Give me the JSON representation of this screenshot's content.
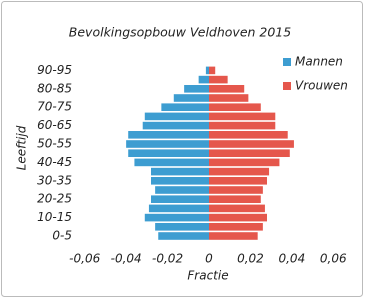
{
  "chart_data": {
    "type": "pyramid",
    "title": "Bevolkingsopbouw Veldhoven 2015",
    "xlabel": "Fractie",
    "ylabel": "Leeftijd",
    "categories": [
      "0-5",
      null,
      "10-15",
      null,
      "20-25",
      null,
      "30-35",
      null,
      "40-45",
      null,
      "50-55",
      null,
      "60-65",
      null,
      "70-75",
      null,
      "80-85",
      null,
      "90-95"
    ],
    "series": [
      {
        "name": "Mannen",
        "color": "#3d9dd1",
        "values": [
          -0.0245,
          -0.026,
          -0.031,
          -0.029,
          -0.028,
          -0.026,
          -0.028,
          -0.028,
          -0.036,
          -0.039,
          -0.04,
          -0.039,
          -0.032,
          -0.031,
          -0.023,
          -0.017,
          -0.012,
          -0.005,
          -0.0015
        ]
      },
      {
        "name": "Vrouwen",
        "color": "#e5574c",
        "values": [
          0.0235,
          0.026,
          0.028,
          0.027,
          0.025,
          0.026,
          0.028,
          0.029,
          0.034,
          0.039,
          0.041,
          0.038,
          0.032,
          0.032,
          0.025,
          0.019,
          0.017,
          0.009,
          0.003
        ]
      }
    ],
    "xlim": [
      -0.07,
      0.07
    ],
    "xticks": [
      {
        "value": -0.06,
        "label": "-0,06"
      },
      {
        "value": -0.04,
        "label": "-0,04"
      },
      {
        "value": -0.02,
        "label": "-0,02"
      },
      0,
      {
        "value": 0.02,
        "label": "0,02"
      },
      {
        "value": 0.04,
        "label": "0,04"
      },
      {
        "value": 0.06,
        "label": "0,06"
      }
    ],
    "legend": "upper right"
  }
}
